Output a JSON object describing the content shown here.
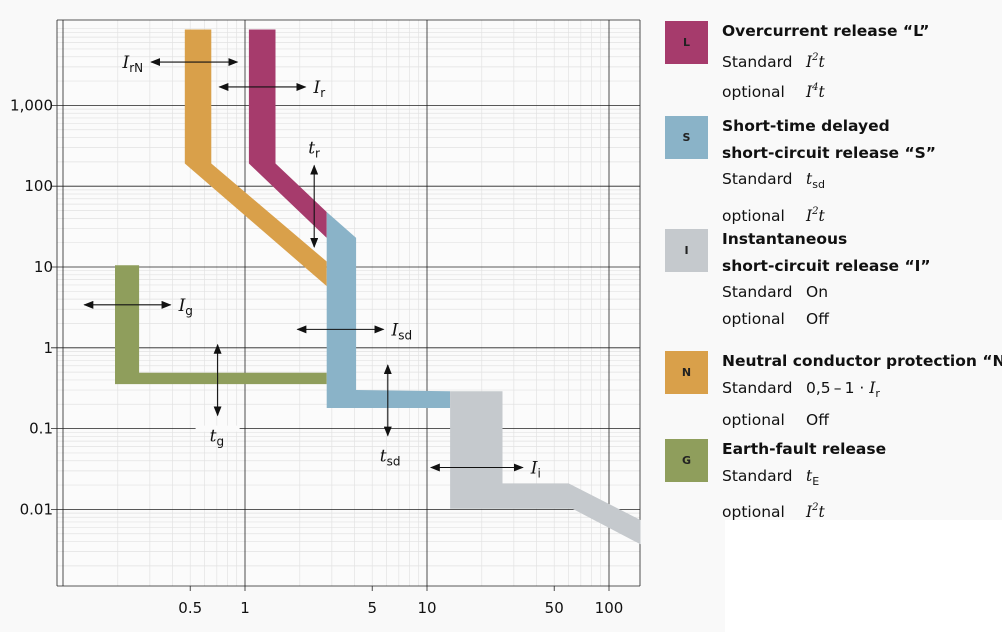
{
  "chart_data": {
    "type": "area",
    "title": "",
    "xlabel": "",
    "ylabel": "",
    "x_scale": "log",
    "y_scale": "log",
    "xlim": [
      0.093,
      148
    ],
    "ylim": [
      0.0011,
      11000
    ],
    "grid": true,
    "x_ticks": [
      {
        "value": 0.5,
        "label": "0.5"
      },
      {
        "value": 1,
        "label": "1"
      },
      {
        "value": 5,
        "label": "5"
      },
      {
        "value": 10,
        "label": "10"
      },
      {
        "value": 50,
        "label": "50"
      },
      {
        "value": 100,
        "label": "100"
      }
    ],
    "y_ticks": [
      {
        "value": 1000,
        "label": "1,000"
      },
      {
        "value": 100,
        "label": "100"
      },
      {
        "value": 10,
        "label": "10"
      },
      {
        "value": 1,
        "label": "1"
      },
      {
        "value": 0.1,
        "label": "0.1"
      },
      {
        "value": 0.01,
        "label": "0.01"
      }
    ],
    "series": [
      {
        "name": "N",
        "color": "#d9a04a",
        "polygon": [
          [
            0.467,
            8700
          ],
          [
            0.653,
            8700
          ],
          [
            0.653,
            191
          ],
          [
            2.81,
            11.7
          ],
          [
            2.81,
            5.8
          ],
          [
            0.467,
            191
          ]
        ]
      },
      {
        "name": "L",
        "color": "#a63b6c",
        "polygon": [
          [
            1.05,
            8700
          ],
          [
            1.47,
            8700
          ],
          [
            1.47,
            191
          ],
          [
            2.81,
            48
          ],
          [
            2.81,
            22.9
          ],
          [
            1.05,
            191
          ]
        ]
      },
      {
        "name": "G",
        "color": "#8f9e5c",
        "polygon": [
          [
            0.193,
            10.5
          ],
          [
            0.262,
            10.5
          ],
          [
            0.262,
            0.49
          ],
          [
            2.81,
            0.49
          ],
          [
            2.81,
            0.355
          ],
          [
            0.193,
            0.355
          ]
        ]
      },
      {
        "name": "S",
        "color": "#8ab3c8",
        "polygon": [
          [
            2.81,
            48
          ],
          [
            4.08,
            22.9
          ],
          [
            4.08,
            0.3
          ],
          [
            13.4,
            0.29
          ],
          [
            13.4,
            0.18
          ],
          [
            2.81,
            0.18
          ]
        ]
      },
      {
        "name": "I",
        "color": "#c5c9cd",
        "polygon": [
          [
            13.4,
            0.29
          ],
          [
            26,
            0.29
          ],
          [
            26,
            0.021
          ],
          [
            60,
            0.021
          ],
          [
            149,
            0.0074
          ],
          [
            149,
            0.0037
          ],
          [
            63,
            0.0102
          ],
          [
            13.4,
            0.0102
          ]
        ]
      }
    ],
    "annotations": [
      {
        "id": "IrN",
        "main": "I",
        "sub": "rN",
        "dir": "h",
        "from": [
          0.305,
          3440
        ],
        "to": [
          0.908,
          3440
        ],
        "label_side": "left"
      },
      {
        "id": "Ir",
        "main": "I",
        "sub": "r",
        "dir": "h",
        "from": [
          0.723,
          1690
        ],
        "to": [
          2.15,
          1690
        ],
        "label_side": "right"
      },
      {
        "id": "tr",
        "main": "t",
        "sub": "r",
        "dir": "v",
        "from": [
          2.4,
          180
        ],
        "to": [
          2.4,
          17.7
        ],
        "label_side": "top"
      },
      {
        "id": "Ig",
        "main": "I",
        "sub": "g",
        "dir": "h",
        "from": [
          0.131,
          3.4
        ],
        "to": [
          0.39,
          3.4
        ],
        "label_side": "right"
      },
      {
        "id": "Isd",
        "main": "I",
        "sub": "sd",
        "dir": "h",
        "from": [
          1.94,
          1.69
        ],
        "to": [
          5.77,
          1.69
        ],
        "label_side": "right"
      },
      {
        "id": "tg",
        "main": "t",
        "sub": "g",
        "dir": "v",
        "from": [
          0.707,
          1.09
        ],
        "to": [
          0.707,
          0.146
        ],
        "label_side": "bottom"
      },
      {
        "id": "tsd",
        "main": "t",
        "sub": "sd",
        "dir": "v",
        "from": [
          6.09,
          0.61
        ],
        "to": [
          6.09,
          0.082
        ],
        "label_side": "bottom"
      },
      {
        "id": "Ii",
        "main": "I",
        "sub": "i",
        "dir": "h",
        "from": [
          10.5,
          0.033
        ],
        "to": [
          33.6,
          0.033
        ],
        "label_side": "right"
      }
    ]
  },
  "legend": [
    {
      "key": "L",
      "color": "#a63b6c",
      "title": [
        "Overcurrent release “L”"
      ],
      "rows": [
        {
          "label": "Standard",
          "value": [
            {
              "t": "I",
              "s": "it"
            },
            {
              "t": "2",
              "s": "sup"
            },
            {
              "t": "t",
              "s": "it"
            }
          ]
        },
        {
          "label": "optional",
          "value": [
            {
              "t": "I",
              "s": "it"
            },
            {
              "t": "4",
              "s": "sup"
            },
            {
              "t": "t",
              "s": "it"
            }
          ]
        }
      ]
    },
    {
      "key": "S",
      "color": "#8ab3c8",
      "title": [
        "Short-time delayed",
        "short-circuit release “S”"
      ],
      "rows": [
        {
          "label": "Standard",
          "value": [
            {
              "t": "t",
              "s": "it"
            },
            {
              "t": "sd",
              "s": "sub"
            }
          ]
        },
        {
          "label": "optional",
          "value": [
            {
              "t": "I",
              "s": "it"
            },
            {
              "t": "2",
              "s": "sup"
            },
            {
              "t": "t",
              "s": "it"
            }
          ]
        }
      ]
    },
    {
      "key": "I",
      "color": "#c5c9cd",
      "title": [
        "Instantaneous",
        "short-circuit release “I”"
      ],
      "rows": [
        {
          "label": "Standard",
          "value": [
            {
              "t": "On",
              "s": "n"
            }
          ]
        },
        {
          "label": "optional",
          "value": [
            {
              "t": "Off",
              "s": "n"
            }
          ]
        }
      ]
    },
    {
      "key": "N",
      "color": "#d9a04a",
      "title": [
        "Neutral conductor protection “N”"
      ],
      "rows": [
        {
          "label": "Standard",
          "value": [
            {
              "t": "0,5 – 1 · ",
              "s": "n"
            },
            {
              "t": "I",
              "s": "it"
            },
            {
              "t": "r",
              "s": "sub"
            }
          ]
        },
        {
          "label": "optional",
          "value": [
            {
              "t": "Off",
              "s": "n"
            }
          ]
        }
      ]
    },
    {
      "key": "G",
      "color": "#8f9e5c",
      "title": [
        "Earth-fault release"
      ],
      "rows": [
        {
          "label": "Standard",
          "value": [
            {
              "t": "t",
              "s": "it"
            },
            {
              "t": "E",
              "s": "sub"
            }
          ]
        },
        {
          "label": "optional",
          "value": [
            {
              "t": "I",
              "s": "it"
            },
            {
              "t": "2",
              "s": "sup"
            },
            {
              "t": "t",
              "s": "it"
            }
          ]
        }
      ]
    }
  ]
}
